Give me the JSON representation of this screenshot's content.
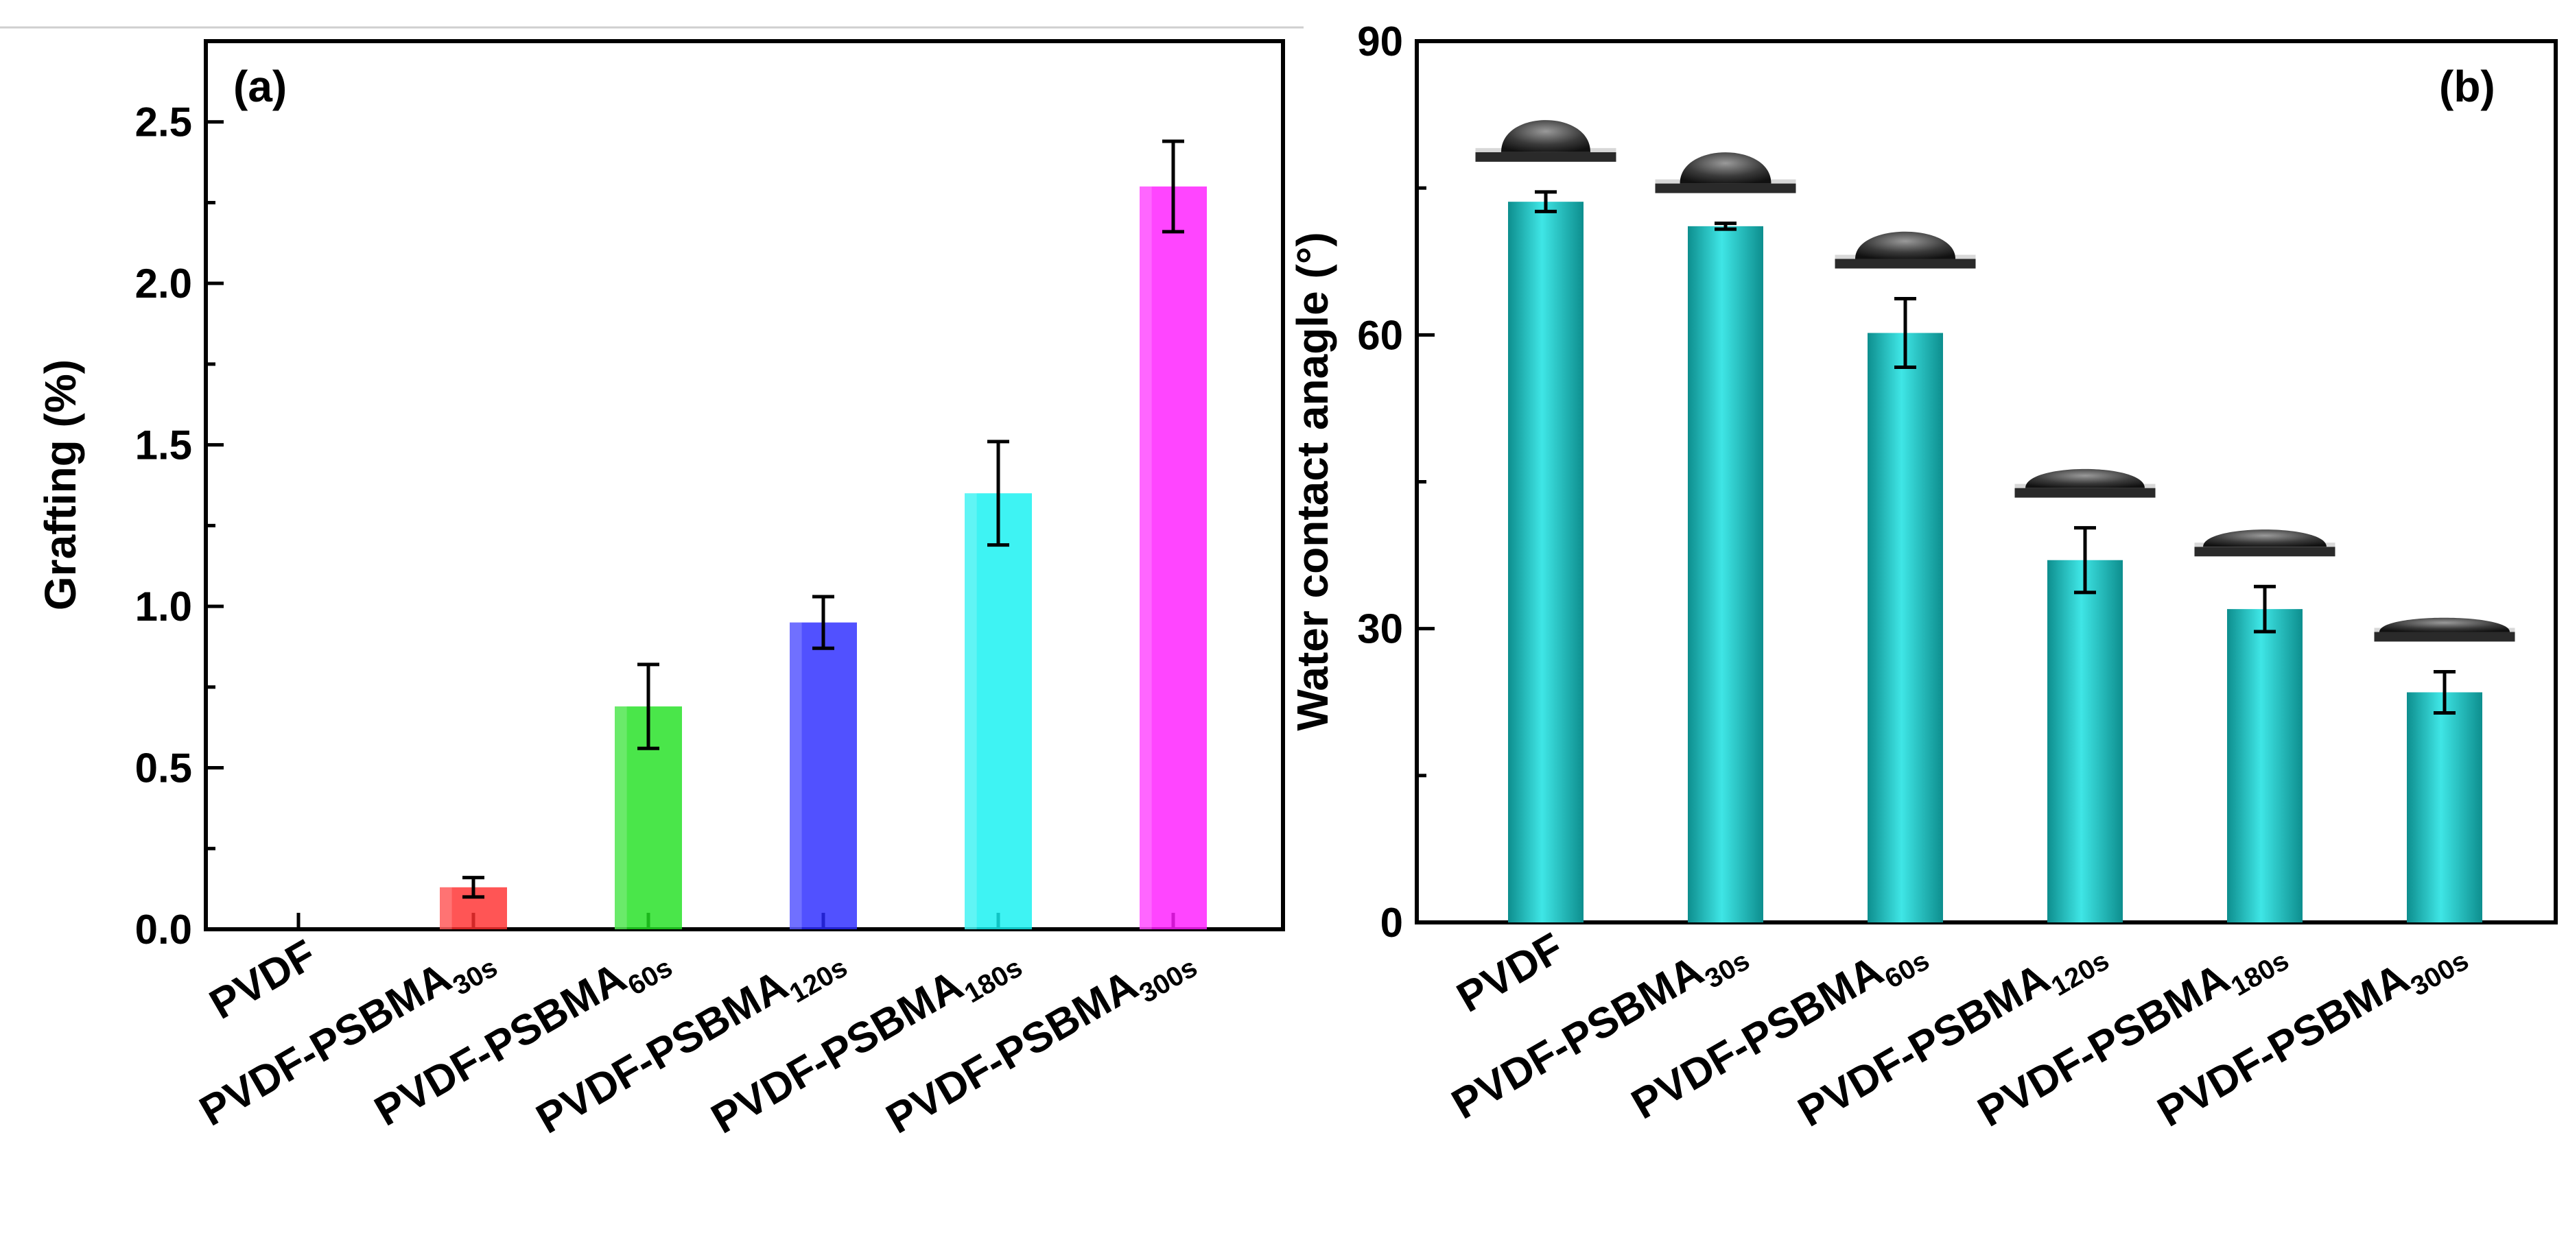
{
  "chart_data": [
    {
      "panel": "(a)",
      "type": "bar",
      "ylabel": "Grafting (%)",
      "xlabel": "",
      "ylim": [
        0,
        2.75
      ],
      "yticks": [
        "0.0",
        "0.5",
        "1.0",
        "1.5",
        "2.0",
        "2.5"
      ],
      "grid": false,
      "categories": [
        {
          "base": "PVDF",
          "sub": ""
        },
        {
          "base": "PVDF-PSBMA",
          "sub": "30s"
        },
        {
          "base": "PVDF-PSBMA",
          "sub": "60s"
        },
        {
          "base": "PVDF-PSBMA",
          "sub": "120s"
        },
        {
          "base": "PVDF-PSBMA",
          "sub": "180s"
        },
        {
          "base": "PVDF-PSBMA",
          "sub": "300s"
        }
      ],
      "values": [
        0,
        0.13,
        0.69,
        0.95,
        1.35,
        2.3
      ],
      "errors": [
        0,
        0.03,
        0.13,
        0.08,
        0.16,
        0.14
      ],
      "colors": [
        "#e6e6e6",
        "#ff3030",
        "#22e022",
        "#2b2bff",
        "#14f0f0",
        "#ff1cff"
      ]
    },
    {
      "panel": "(b)",
      "type": "bar",
      "ylabel": "Water contact anagle (°)",
      "xlabel": "",
      "ylim": [
        0,
        90
      ],
      "yticks": [
        "0",
        "30",
        "60",
        "90"
      ],
      "grid": false,
      "categories": [
        {
          "base": "PVDF",
          "sub": ""
        },
        {
          "base": "PVDF-PSBMA",
          "sub": "30s"
        },
        {
          "base": "PVDF-PSBMA",
          "sub": "60s"
        },
        {
          "base": "PVDF-PSBMA",
          "sub": "120s"
        },
        {
          "base": "PVDF-PSBMA",
          "sub": "180s"
        },
        {
          "base": "PVDF-PSBMA",
          "sub": "300s"
        }
      ],
      "values": [
        73.6,
        71.1,
        60.2,
        37.0,
        32.0,
        23.5
      ],
      "errors": [
        1.0,
        0.3,
        3.5,
        3.3,
        2.3,
        2.1
      ],
      "colors": [
        "#1fc3c3",
        "#1fc3c3",
        "#1fc3c3",
        "#1fc3c3",
        "#1fc3c3",
        "#1fc3c3"
      ],
      "inset": "water droplet images"
    }
  ]
}
